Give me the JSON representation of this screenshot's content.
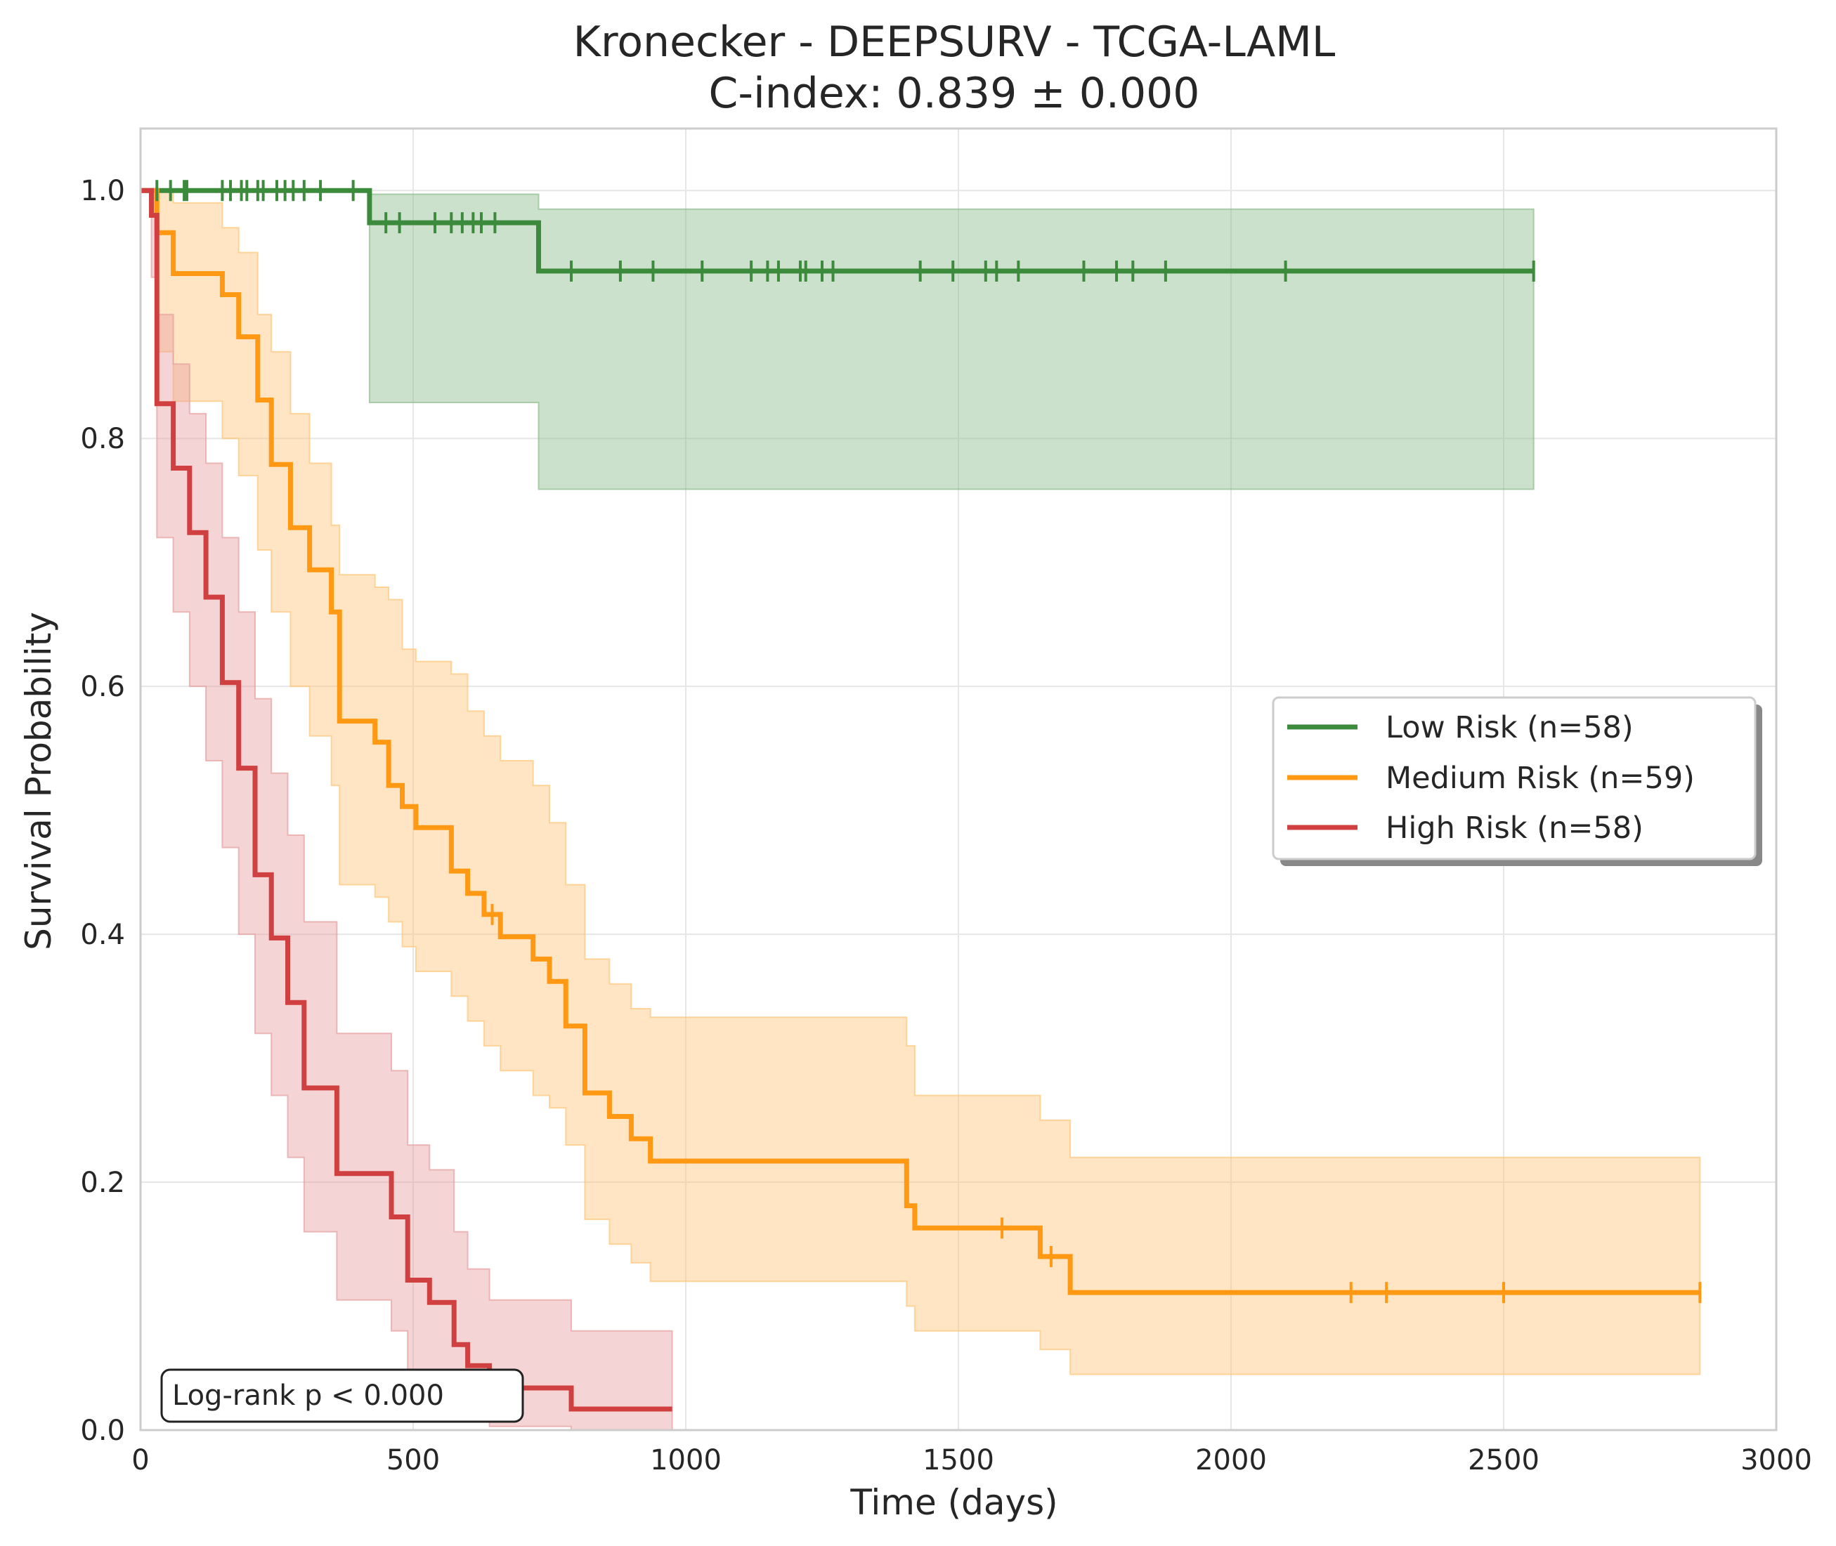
{
  "chart_data": {
    "type": "line",
    "subtype": "kaplan-meier step curves with confidence bands and censor ticks",
    "title": "Kronecker - DEEPSURV - TCGA-LAML",
    "subtitle": "C-index: 0.839 ± 0.000",
    "xlabel": "Time (days)",
    "ylabel": "Survival Probability",
    "xlim": [
      0,
      3000
    ],
    "ylim": [
      0,
      1.05
    ],
    "xticks": [
      "0",
      "500",
      "1000",
      "1500",
      "2000",
      "2500",
      "3000"
    ],
    "yticks": [
      "0.0",
      "0.2",
      "0.4",
      "0.6",
      "0.8",
      "1.0"
    ],
    "grid": true,
    "legend_position": "center-right",
    "annotation": "Log-rank p < 0.000",
    "series": [
      {
        "name": "Low Risk (n=58)",
        "color": "#3c8a3c",
        "band_color": "#8fbc8f",
        "step_x": [
          0,
          420,
          730,
          2555
        ],
        "step_y": [
          1.0,
          0.974,
          0.935,
          0.935
        ],
        "ci_upper": [
          1.0,
          0.997,
          0.985,
          0.985
        ],
        "ci_lower": [
          1.0,
          0.829,
          0.759,
          0.759
        ],
        "censor_x": [
          30,
          55,
          80,
          85,
          150,
          165,
          185,
          195,
          215,
          225,
          250,
          265,
          280,
          300,
          330,
          390,
          450,
          475,
          540,
          570,
          590,
          610,
          625,
          650,
          790,
          880,
          940,
          1030,
          1120,
          1150,
          1170,
          1210,
          1220,
          1250,
          1270,
          1430,
          1490,
          1550,
          1570,
          1610,
          1730,
          1790,
          1820,
          1880,
          2100,
          2555
        ],
        "censor_y": [
          1.0,
          1.0,
          1.0,
          1.0,
          1.0,
          1.0,
          1.0,
          1.0,
          1.0,
          1.0,
          1.0,
          1.0,
          1.0,
          1.0,
          1.0,
          1.0,
          0.974,
          0.974,
          0.974,
          0.974,
          0.974,
          0.974,
          0.974,
          0.974,
          0.935,
          0.935,
          0.935,
          0.935,
          0.935,
          0.935,
          0.935,
          0.935,
          0.935,
          0.935,
          0.935,
          0.935,
          0.935,
          0.935,
          0.935,
          0.935,
          0.935,
          0.935,
          0.935,
          0.935,
          0.935,
          0.935
        ]
      },
      {
        "name": "Medium Risk (n=59)",
        "color": "#ff9914",
        "band_color": "#ffc67a",
        "step_x": [
          0,
          30,
          60,
          150,
          180,
          215,
          240,
          275,
          310,
          350,
          365,
          430,
          455,
          480,
          505,
          570,
          600,
          630,
          660,
          720,
          750,
          780,
          815,
          860,
          900,
          935,
          1405,
          1420,
          1650,
          1705,
          2860
        ],
        "step_y": [
          1.0,
          0.966,
          0.933,
          0.916,
          0.882,
          0.831,
          0.779,
          0.728,
          0.694,
          0.66,
          0.572,
          0.555,
          0.52,
          0.503,
          0.486,
          0.451,
          0.433,
          0.416,
          0.398,
          0.38,
          0.362,
          0.326,
          0.272,
          0.253,
          0.235,
          0.217,
          0.181,
          0.163,
          0.14,
          0.111,
          0.111
        ],
        "ci_upper": [
          1.0,
          1.0,
          0.99,
          0.97,
          0.95,
          0.9,
          0.87,
          0.82,
          0.78,
          0.73,
          0.69,
          0.68,
          0.67,
          0.63,
          0.62,
          0.61,
          0.58,
          0.56,
          0.54,
          0.52,
          0.49,
          0.44,
          0.38,
          0.36,
          0.34,
          0.333,
          0.31,
          0.27,
          0.25,
          0.22,
          0.22
        ],
        "ci_lower": [
          1.0,
          0.87,
          0.83,
          0.8,
          0.77,
          0.71,
          0.66,
          0.6,
          0.56,
          0.52,
          0.44,
          0.43,
          0.41,
          0.39,
          0.37,
          0.35,
          0.33,
          0.31,
          0.29,
          0.27,
          0.26,
          0.23,
          0.17,
          0.15,
          0.135,
          0.12,
          0.1,
          0.08,
          0.065,
          0.045,
          0.045
        ],
        "censor_x": [
          645,
          1580,
          1670,
          2220,
          2285,
          2500,
          2860
        ],
        "censor_y": [
          0.416,
          0.163,
          0.14,
          0.111,
          0.111,
          0.111,
          0.111
        ]
      },
      {
        "name": "High Risk (n=58)",
        "color": "#d14040",
        "band_color": "#e6a0a0",
        "step_x": [
          0,
          20,
          30,
          60,
          90,
          120,
          150,
          180,
          210,
          240,
          270,
          300,
          360,
          460,
          490,
          530,
          575,
          600,
          640,
          790,
          975
        ],
        "step_y": [
          1.0,
          0.98,
          0.828,
          0.776,
          0.724,
          0.672,
          0.603,
          0.534,
          0.448,
          0.397,
          0.345,
          0.276,
          0.207,
          0.172,
          0.121,
          0.103,
          0.069,
          0.052,
          0.034,
          0.017,
          0.017
        ],
        "ci_upper": [
          1.0,
          1.0,
          0.9,
          0.86,
          0.82,
          0.78,
          0.72,
          0.66,
          0.59,
          0.53,
          0.48,
          0.41,
          0.32,
          0.29,
          0.23,
          0.21,
          0.16,
          0.13,
          0.105,
          0.08,
          0.08
        ],
        "ci_lower": [
          1.0,
          0.93,
          0.72,
          0.66,
          0.6,
          0.54,
          0.47,
          0.4,
          0.32,
          0.27,
          0.22,
          0.16,
          0.105,
          0.08,
          0.045,
          0.035,
          0.015,
          0.008,
          0.003,
          0.0,
          0.0
        ],
        "censor_x": [],
        "censor_y": []
      }
    ]
  }
}
